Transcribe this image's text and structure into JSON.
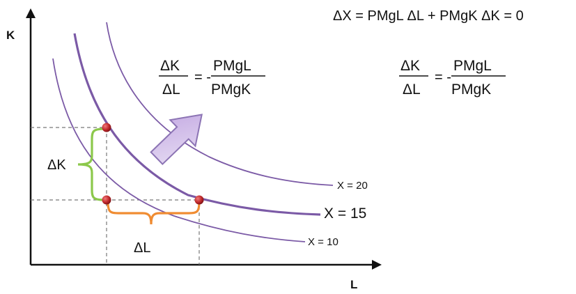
{
  "axes": {
    "y_label": "K",
    "x_label": "L"
  },
  "curves": [
    {
      "label": "X = 10"
    },
    {
      "label": "X = 15"
    },
    {
      "label": "X = 20"
    }
  ],
  "brace_labels": {
    "delta_k": "ΔK",
    "delta_l": "ΔL"
  },
  "top_equation": "ΔX = PMgL ΔL + PMgK ΔK = 0",
  "fraction_main": {
    "num": "ΔK",
    "den": "ΔL",
    "mid": "= -",
    "num_r": "PMgL",
    "den_r": "PMgK"
  },
  "fraction_side": {
    "num": "ΔK",
    "den": "ΔL",
    "mid": "= -",
    "num_r": "PMgL",
    "den_r": "PMgK"
  },
  "colors": {
    "curve": "#7b5aa6",
    "point": "#c0282b",
    "brace_k": "#8cc84b",
    "brace_l": "#f08c32",
    "arrow_fill": "#cdb6e6",
    "arrow_stroke": "#8c74b4"
  }
}
